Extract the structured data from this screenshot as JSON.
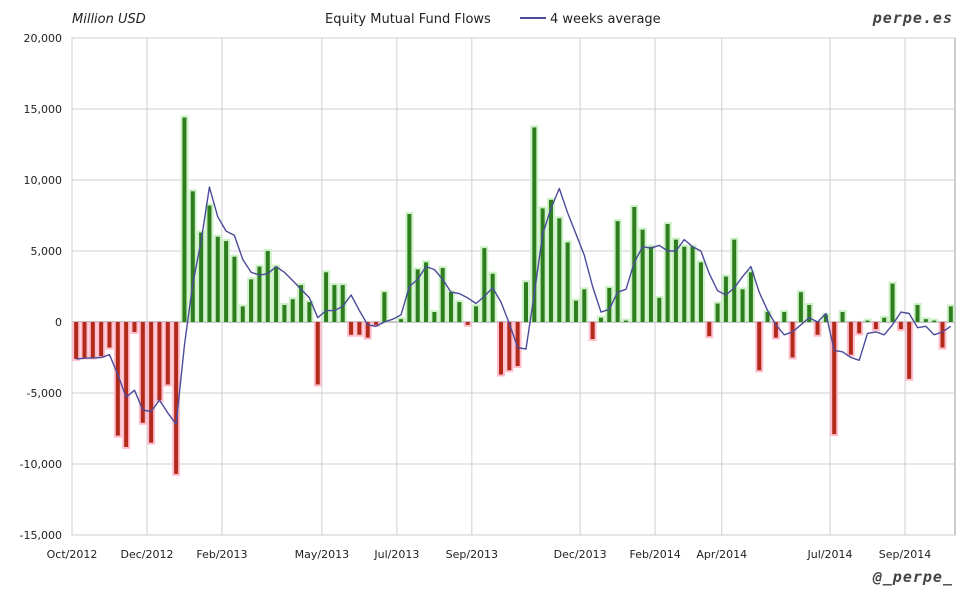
{
  "header": {
    "unit_label": "Million USD",
    "title": "Equity Mutual Fund Flows",
    "legend_label": "4 weeks average",
    "brand_top": "perpe.es",
    "brand_bottom": "@_perpe_"
  },
  "colors": {
    "positive": "#2e7d1e",
    "negative": "#b22a1a",
    "glow_positive": "#c8f0c0",
    "glow_negative": "#ffb8c8",
    "line": "#4b4b9a",
    "grid": "#cfcfcf"
  },
  "chart_data": {
    "type": "bar",
    "title": "Equity Mutual Fund Flows",
    "ylabel": "Million USD",
    "ylim": [
      -15000,
      20000
    ],
    "yticks": [
      {
        "value": 20000,
        "label": "20,000"
      },
      {
        "value": 15000,
        "label": "15,000"
      },
      {
        "value": 10000,
        "label": "10,000"
      },
      {
        "value": 5000,
        "label": "5,000"
      },
      {
        "value": 0,
        "label": "0"
      },
      {
        "value": -5000,
        "label": "-5,000"
      },
      {
        "value": -10000,
        "label": "-10,000"
      },
      {
        "value": -15000,
        "label": "-15,000"
      }
    ],
    "xticks": [
      {
        "week": 0,
        "label": "Oct/2012"
      },
      {
        "week": 9,
        "label": "Dec/2012"
      },
      {
        "week": 18,
        "label": "Feb/2013"
      },
      {
        "week": 30,
        "label": "May/2013"
      },
      {
        "week": 39,
        "label": "Jul/2013"
      },
      {
        "week": 48,
        "label": "Sep/2013"
      },
      {
        "week": 61,
        "label": "Dec/2013"
      },
      {
        "week": 70,
        "label": "Feb/2014"
      },
      {
        "week": 78,
        "label": "Apr/2014"
      },
      {
        "week": 91,
        "label": "Jul/2014"
      },
      {
        "week": 100,
        "label": "Sep/2014"
      }
    ],
    "series": [
      {
        "kind": "bar",
        "values": [
          -2600,
          -2500,
          -2500,
          -2400,
          -1800,
          -8000,
          -8800,
          -700,
          -7100,
          -8500,
          -5500,
          -4400,
          -10700,
          14400,
          9200,
          6300,
          8200,
          6000,
          5700,
          4600,
          1100,
          3000,
          3900,
          5000,
          3900,
          1200,
          1600,
          2600,
          1400,
          -4400,
          3500,
          2600,
          2600,
          -900,
          -900,
          -1100,
          -200,
          2100,
          0,
          200,
          7600,
          3700,
          4200,
          700,
          3800,
          2100,
          1400,
          -200,
          1100,
          5200,
          3400,
          -3700,
          -3400,
          -3100,
          2800,
          13700,
          8000,
          8600,
          7300,
          5600,
          1500,
          2300,
          -1200,
          300,
          2400,
          7100,
          100,
          8100,
          6500,
          5300,
          1700,
          6900,
          5800,
          5300,
          5300,
          4200,
          -1000,
          1300,
          3200,
          5800,
          2300,
          3500,
          -3400,
          700,
          -1100,
          700,
          -2500,
          2100,
          1200,
          -900,
          500,
          -7900,
          700,
          -2300,
          -800,
          100,
          -500,
          300,
          2700,
          -500,
          -4000,
          1200,
          200,
          100,
          -1800,
          1100
        ]
      },
      {
        "kind": "line",
        "name": "4 weeks average",
        "values": [
          -2600,
          -2550,
          -2530,
          -2500,
          -2300,
          -3700,
          -5300,
          -4800,
          -6200,
          -6300,
          -5500,
          -6400,
          -7200,
          -1600,
          2700,
          5700,
          9500,
          7400,
          6400,
          6100,
          4400,
          3500,
          3300,
          3400,
          3900,
          3500,
          2900,
          2300,
          1700,
          300,
          800,
          800,
          1100,
          1900,
          800,
          -200,
          -300,
          0,
          200,
          500,
          2500,
          3000,
          3900,
          3700,
          3000,
          2100,
          2000,
          1700,
          1300,
          1800,
          2400,
          1400,
          -100,
          -1800,
          -1900,
          2000,
          6200,
          8000,
          9400,
          7700,
          6200,
          4700,
          2500,
          700,
          900,
          2100,
          2300,
          4200,
          5300,
          5200,
          5400,
          5000,
          5000,
          5800,
          5300,
          5000,
          3400,
          2200,
          1900,
          2400,
          3200,
          3900,
          2100,
          800,
          -200,
          -900,
          -700,
          -200,
          300,
          0,
          600,
          -2000,
          -2100,
          -2500,
          -2700,
          -800,
          -700,
          -900,
          -200,
          700,
          600,
          -400,
          -300,
          -900,
          -700,
          -300
        ]
      }
    ]
  }
}
